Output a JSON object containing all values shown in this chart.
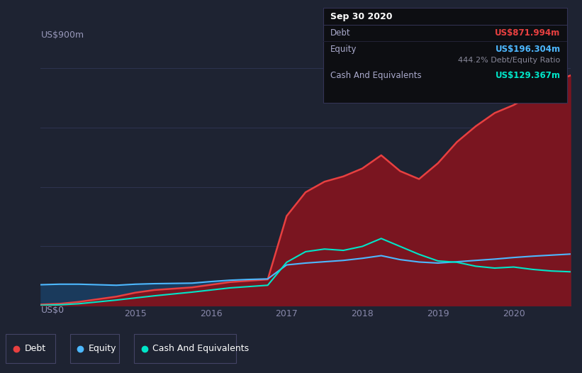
{
  "bg_color": "#1e2332",
  "plot_bg_color": "#1e2332",
  "title": "Sep 30 2020",
  "debt_label": "Debt",
  "equity_label": "Equity",
  "cash_label": "Cash And Equivalents",
  "debt_value": "US$871.994m",
  "equity_value": "US$196.304m",
  "de_ratio": "444.2%",
  "de_ratio_label": "Debt/Equity Ratio",
  "cash_value": "US$129.367m",
  "debt_color": "#e84040",
  "equity_color": "#4db8ff",
  "cash_color": "#00e5c8",
  "debt_fill_color": "#7a1520",
  "cash_fill_color": "#1a5060",
  "equity_fill_color": "#1a3a5c",
  "ylabel_top": "US$900m",
  "ylabel_bottom": "US$0",
  "x_ticks": [
    "2015",
    "2016",
    "2017",
    "2018",
    "2019",
    "2020"
  ],
  "x_tick_pos": [
    2015,
    2016,
    2017,
    2018,
    2019,
    2020
  ],
  "grid_color": "#2e3450",
  "years": [
    2013.75,
    2014.0,
    2014.25,
    2014.5,
    2014.75,
    2015.0,
    2015.25,
    2015.5,
    2015.75,
    2016.0,
    2016.25,
    2016.5,
    2016.75,
    2017.0,
    2017.25,
    2017.5,
    2017.75,
    2018.0,
    2018.25,
    2018.5,
    2018.75,
    2019.0,
    2019.25,
    2019.5,
    2019.75,
    2020.0,
    2020.25,
    2020.5,
    2020.75
  ],
  "debt": [
    5,
    8,
    15,
    25,
    35,
    50,
    60,
    65,
    70,
    80,
    90,
    95,
    100,
    340,
    430,
    470,
    490,
    520,
    570,
    510,
    480,
    540,
    620,
    680,
    730,
    760,
    800,
    845,
    872
  ],
  "equity": [
    80,
    82,
    82,
    80,
    78,
    82,
    84,
    85,
    86,
    92,
    97,
    100,
    102,
    155,
    162,
    167,
    172,
    180,
    190,
    175,
    166,
    162,
    167,
    172,
    177,
    183,
    188,
    192,
    196
  ],
  "cash": [
    2,
    4,
    8,
    15,
    22,
    30,
    38,
    45,
    52,
    60,
    68,
    73,
    78,
    165,
    205,
    215,
    210,
    225,
    255,
    225,
    195,
    170,
    165,
    150,
    143,
    147,
    138,
    132,
    129
  ]
}
